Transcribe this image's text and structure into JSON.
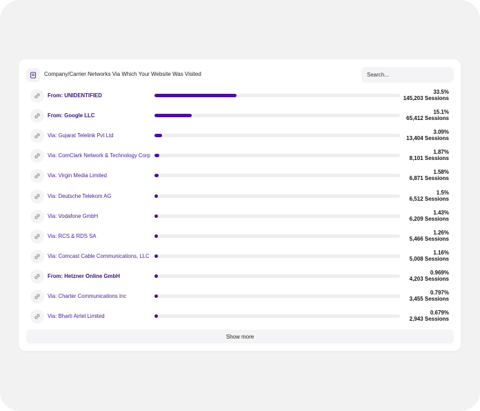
{
  "header": {
    "title": "Company/Carrier Networks Via Which Your Website Was Visited",
    "icon": "report-icon"
  },
  "search": {
    "placeholder": "Search..."
  },
  "rows": [
    {
      "label": "From: UNIDENTIFIED",
      "bold": true,
      "share": 33.5,
      "percent": "33.5%",
      "sessions": "145,203 Sessions"
    },
    {
      "label": "From: Google LLC",
      "bold": true,
      "share": 15.1,
      "percent": "15.1%",
      "sessions": "65,412 Sessions"
    },
    {
      "label": "Via: Gujarat Telelink Pvt Ltd",
      "bold": false,
      "share": 3.09,
      "percent": "3.09%",
      "sessions": "13,404 Sessions"
    },
    {
      "label": "Via: ComClark Network & Technology Corp",
      "bold": false,
      "share": 1.87,
      "percent": "1.87%",
      "sessions": "8,101 Sessions"
    },
    {
      "label": "Via: Virgin Media Limited",
      "bold": false,
      "share": 1.58,
      "percent": "1.58%",
      "sessions": "6,871 Sessions"
    },
    {
      "label": "Via: Deutsche Telekom AG",
      "bold": false,
      "share": 1.5,
      "percent": "1.5%",
      "sessions": "6,512 Sessions"
    },
    {
      "label": "Via: Vodafone GmbH",
      "bold": false,
      "share": 1.43,
      "percent": "1.43%",
      "sessions": "6,209 Sessions"
    },
    {
      "label": "Via: RCS & RDS SA",
      "bold": false,
      "share": 1.26,
      "percent": "1.26%",
      "sessions": "5,466 Sessions"
    },
    {
      "label": "Via: Comcast Cable Communications, LLC",
      "bold": false,
      "share": 1.16,
      "percent": "1.16%",
      "sessions": "5,008 Sessions"
    },
    {
      "label": "From: Hetzner Online GmbH",
      "bold": true,
      "share": 0.969,
      "percent": "0.969%",
      "sessions": "4,203 Sessions"
    },
    {
      "label": "Via: Charter Communications Inc",
      "bold": false,
      "share": 0.797,
      "percent": "0.797%",
      "sessions": "3,455 Sessions"
    },
    {
      "label": "Via: Bharti Airtel Limited",
      "bold": false,
      "share": 0.679,
      "percent": "0.679%",
      "sessions": "2,943 Sessions"
    }
  ],
  "row_icon": "link-icon",
  "colors": {
    "bar": "#4b0fa0",
    "label": "#4b1a8f",
    "track": "#eeeeef"
  },
  "footer": {
    "show_more_label": "Show more"
  }
}
